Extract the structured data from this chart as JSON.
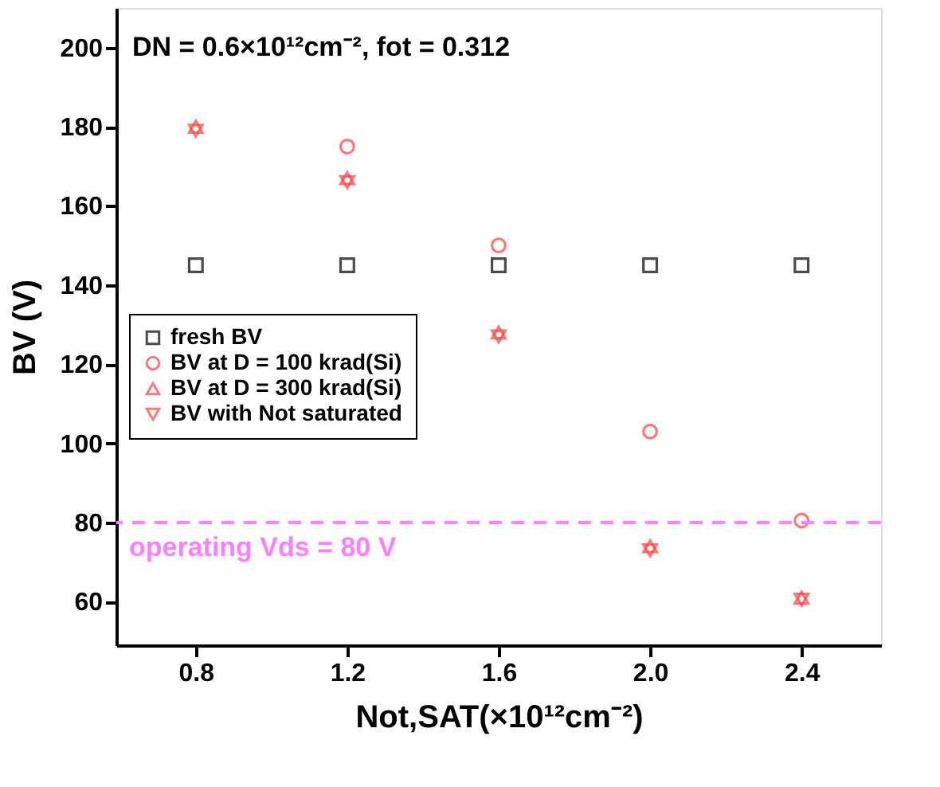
{
  "chart_data": {
    "type": "scatter",
    "xlabel": "Not,SAT(×10¹²cm⁻²)",
    "ylabel": "BV (V)",
    "x": [
      0.8,
      1.2,
      1.6,
      2.0,
      2.4
    ],
    "series": [
      {
        "name": "fresh BV",
        "color": "#000000",
        "marker": "square",
        "values": [
          145,
          145,
          145,
          145,
          145
        ]
      },
      {
        "name": "BV at D = 100 krad(Si)",
        "color": "#ff4040",
        "marker": "circle",
        "values": [
          null,
          175,
          150,
          103,
          80.5
        ]
      },
      {
        "name": "BV at D = 300 krad(Si)",
        "color": "#ff4040",
        "marker": "triangle",
        "values": [
          180,
          167,
          128,
          74,
          61
        ]
      },
      {
        "name": "BV with Not saturated",
        "color": "#ff4040",
        "marker": "triangle-down",
        "values": [
          179,
          166,
          127,
          73,
          60.5
        ]
      }
    ],
    "xlim": [
      0.59,
      2.61
    ],
    "xticks": [
      0.8,
      1.2,
      1.6,
      {
        "value": 2.0,
        "label": "2.0"
      },
      2.4
    ],
    "ylim": [
      49,
      210
    ],
    "yticks": [
      60,
      80,
      100,
      120,
      140,
      160,
      180,
      200
    ],
    "ref_lines": [
      {
        "axis": "y",
        "value": 80,
        "label": "operating Vds = 80 V",
        "color": "#ff80ff",
        "line_style": "dashed"
      }
    ],
    "annotations": [
      "DN = 0.6×10¹²cm⁻², fot = 0.312"
    ],
    "legend": "left",
    "grid": false
  }
}
